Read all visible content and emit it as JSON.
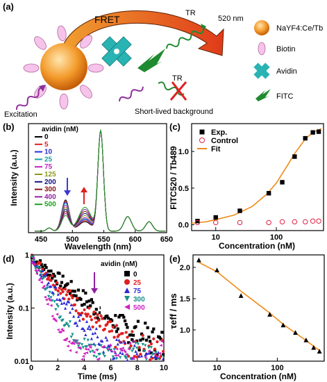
{
  "panels": {
    "a": {
      "label": "(a)",
      "fret": "FRET",
      "tr": "TR",
      "emission": "520 nm",
      "excitation": "Excitation",
      "background_tr": "TR",
      "background": "Short-lived background",
      "legend": [
        "NaYF4:Ce/Tb",
        "Biotin",
        "Avidin",
        "FITC"
      ],
      "colors": {
        "particle": "#f39a2a",
        "biotin": "#e79fd6",
        "avidin": "#2ab3b3",
        "fitc": "#1f8a2f",
        "fret_arrow": "#e8542a",
        "excitation": "#8e2f9b",
        "cross": "#e02020"
      }
    },
    "b": {
      "label": "(b)",
      "xlabel": "Wavelength (nm)",
      "ylabel": "Intensity (a.u.)",
      "legend_title": "avidin (nM)"
    },
    "c": {
      "label": "(c)",
      "xlabel": "Concentration (nM)",
      "ylabel": "FITC520 / Tb489"
    },
    "d": {
      "label": "(d)",
      "xlabel": "Time (ms)",
      "ylabel": "Intensity (a.u.)",
      "legend_title": "avidin (nM)"
    },
    "e": {
      "label": "(e)",
      "xlabel": "Concentration (nM)",
      "ylabel": "τeff / ms"
    }
  },
  "chart_data": [
    {
      "id": "b",
      "type": "line",
      "x_range": [
        430,
        650
      ],
      "y_range": [
        0,
        1.05
      ],
      "x_ticks": [
        450,
        500,
        550,
        600,
        650
      ],
      "legend_title": "avidin (nM)",
      "series": [
        {
          "name": "0",
          "color": "#000000",
          "peak489": 0.3,
          "shoulder520": 0.09
        },
        {
          "name": "5",
          "color": "#e02020",
          "peak489": 0.29,
          "shoulder520": 0.1
        },
        {
          "name": "10",
          "color": "#2a2ad6",
          "peak489": 0.28,
          "shoulder520": 0.11
        },
        {
          "name": "25",
          "color": "#18a0a0",
          "peak489": 0.27,
          "shoulder520": 0.12
        },
        {
          "name": "75",
          "color": "#c020c0",
          "peak489": 0.25,
          "shoulder520": 0.13
        },
        {
          "name": "125",
          "color": "#8a9a1a",
          "peak489": 0.23,
          "shoulder520": 0.15
        },
        {
          "name": "200",
          "color": "#101080",
          "peak489": 0.21,
          "shoulder520": 0.17
        },
        {
          "name": "300",
          "color": "#8a1010",
          "peak489": 0.19,
          "shoulder520": 0.19
        },
        {
          "name": "400",
          "color": "#9020a0",
          "peak489": 0.17,
          "shoulder520": 0.21
        },
        {
          "name": "500",
          "color": "#18a018",
          "peak489": 0.15,
          "shoulder520": 0.23
        }
      ]
    },
    {
      "id": "c",
      "type": "scatter",
      "x_scale": "log",
      "x_range": [
        4,
        600
      ],
      "y_range": [
        -0.08,
        1.38
      ],
      "x_ticks": [
        10,
        100
      ],
      "y_ticks": [
        0.0,
        0.5,
        1.0
      ],
      "series": [
        {
          "name": "Exp.",
          "marker": "square",
          "color": "#000000",
          "x": [
            5,
            10,
            25,
            75,
            125,
            200,
            300,
            400,
            500
          ],
          "y": [
            0.05,
            0.1,
            0.19,
            0.43,
            0.58,
            0.93,
            1.18,
            1.26,
            1.27
          ]
        },
        {
          "name": "Control",
          "marker": "circle-open",
          "color": "#e02040",
          "x": [
            5,
            10,
            25,
            75,
            125,
            200,
            300,
            400,
            500
          ],
          "y": [
            0.03,
            0.03,
            0.03,
            0.03,
            0.04,
            0.04,
            0.04,
            0.05,
            0.05
          ]
        },
        {
          "name": "Fit",
          "marker": "line",
          "color": "#f08a18",
          "x": [
            4,
            7,
            10,
            20,
            40,
            70,
            100,
            150,
            200,
            300,
            400,
            550
          ],
          "y": [
            0.02,
            0.04,
            0.07,
            0.13,
            0.25,
            0.42,
            0.57,
            0.8,
            0.97,
            1.17,
            1.26,
            1.31
          ]
        }
      ]
    },
    {
      "id": "d",
      "type": "scatter",
      "y_scale": "log",
      "x_range": [
        0,
        10
      ],
      "y_range": [
        0.01,
        1
      ],
      "x_ticks": [
        0,
        2,
        4,
        6,
        8,
        10
      ],
      "y_ticks": [
        0.01,
        0.1,
        1
      ],
      "legend_title": "avidin (nM)",
      "series": [
        {
          "name": "0",
          "marker": "square",
          "color": "#000000",
          "tau": 2.1
        },
        {
          "name": "25",
          "marker": "circle",
          "color": "#e02020",
          "tau": 1.6
        },
        {
          "name": "75",
          "marker": "triangle",
          "color": "#2a2ad6",
          "tau": 1.2
        },
        {
          "name": "300",
          "marker": "triangle-down",
          "color": "#16908a",
          "tau": 0.85
        },
        {
          "name": "500",
          "marker": "triangle-left",
          "color": "#d020c0",
          "tau": 0.65
        }
      ]
    },
    {
      "id": "e",
      "type": "line",
      "x_scale": "log",
      "x_range": [
        4,
        600
      ],
      "y_range": [
        0.5,
        2.2
      ],
      "x_ticks": [
        10,
        100
      ],
      "y_ticks": [
        1.0,
        1.5,
        2.0
      ],
      "series": [
        {
          "name": "",
          "marker": "triangle",
          "color": "#000000",
          "x": [
            5,
            10,
            25,
            75,
            125,
            200,
            300,
            400,
            500
          ],
          "y": [
            2.12,
            1.96,
            1.55,
            1.25,
            1.08,
            0.96,
            0.84,
            0.72,
            0.66
          ]
        },
        {
          "name": "",
          "marker": "line",
          "color": "#f08a18",
          "x": [
            5,
            10,
            25,
            75,
            125,
            200,
            300,
            400,
            500
          ],
          "y": [
            2.08,
            1.93,
            1.62,
            1.27,
            1.09,
            0.95,
            0.83,
            0.74,
            0.67
          ]
        }
      ]
    }
  ]
}
